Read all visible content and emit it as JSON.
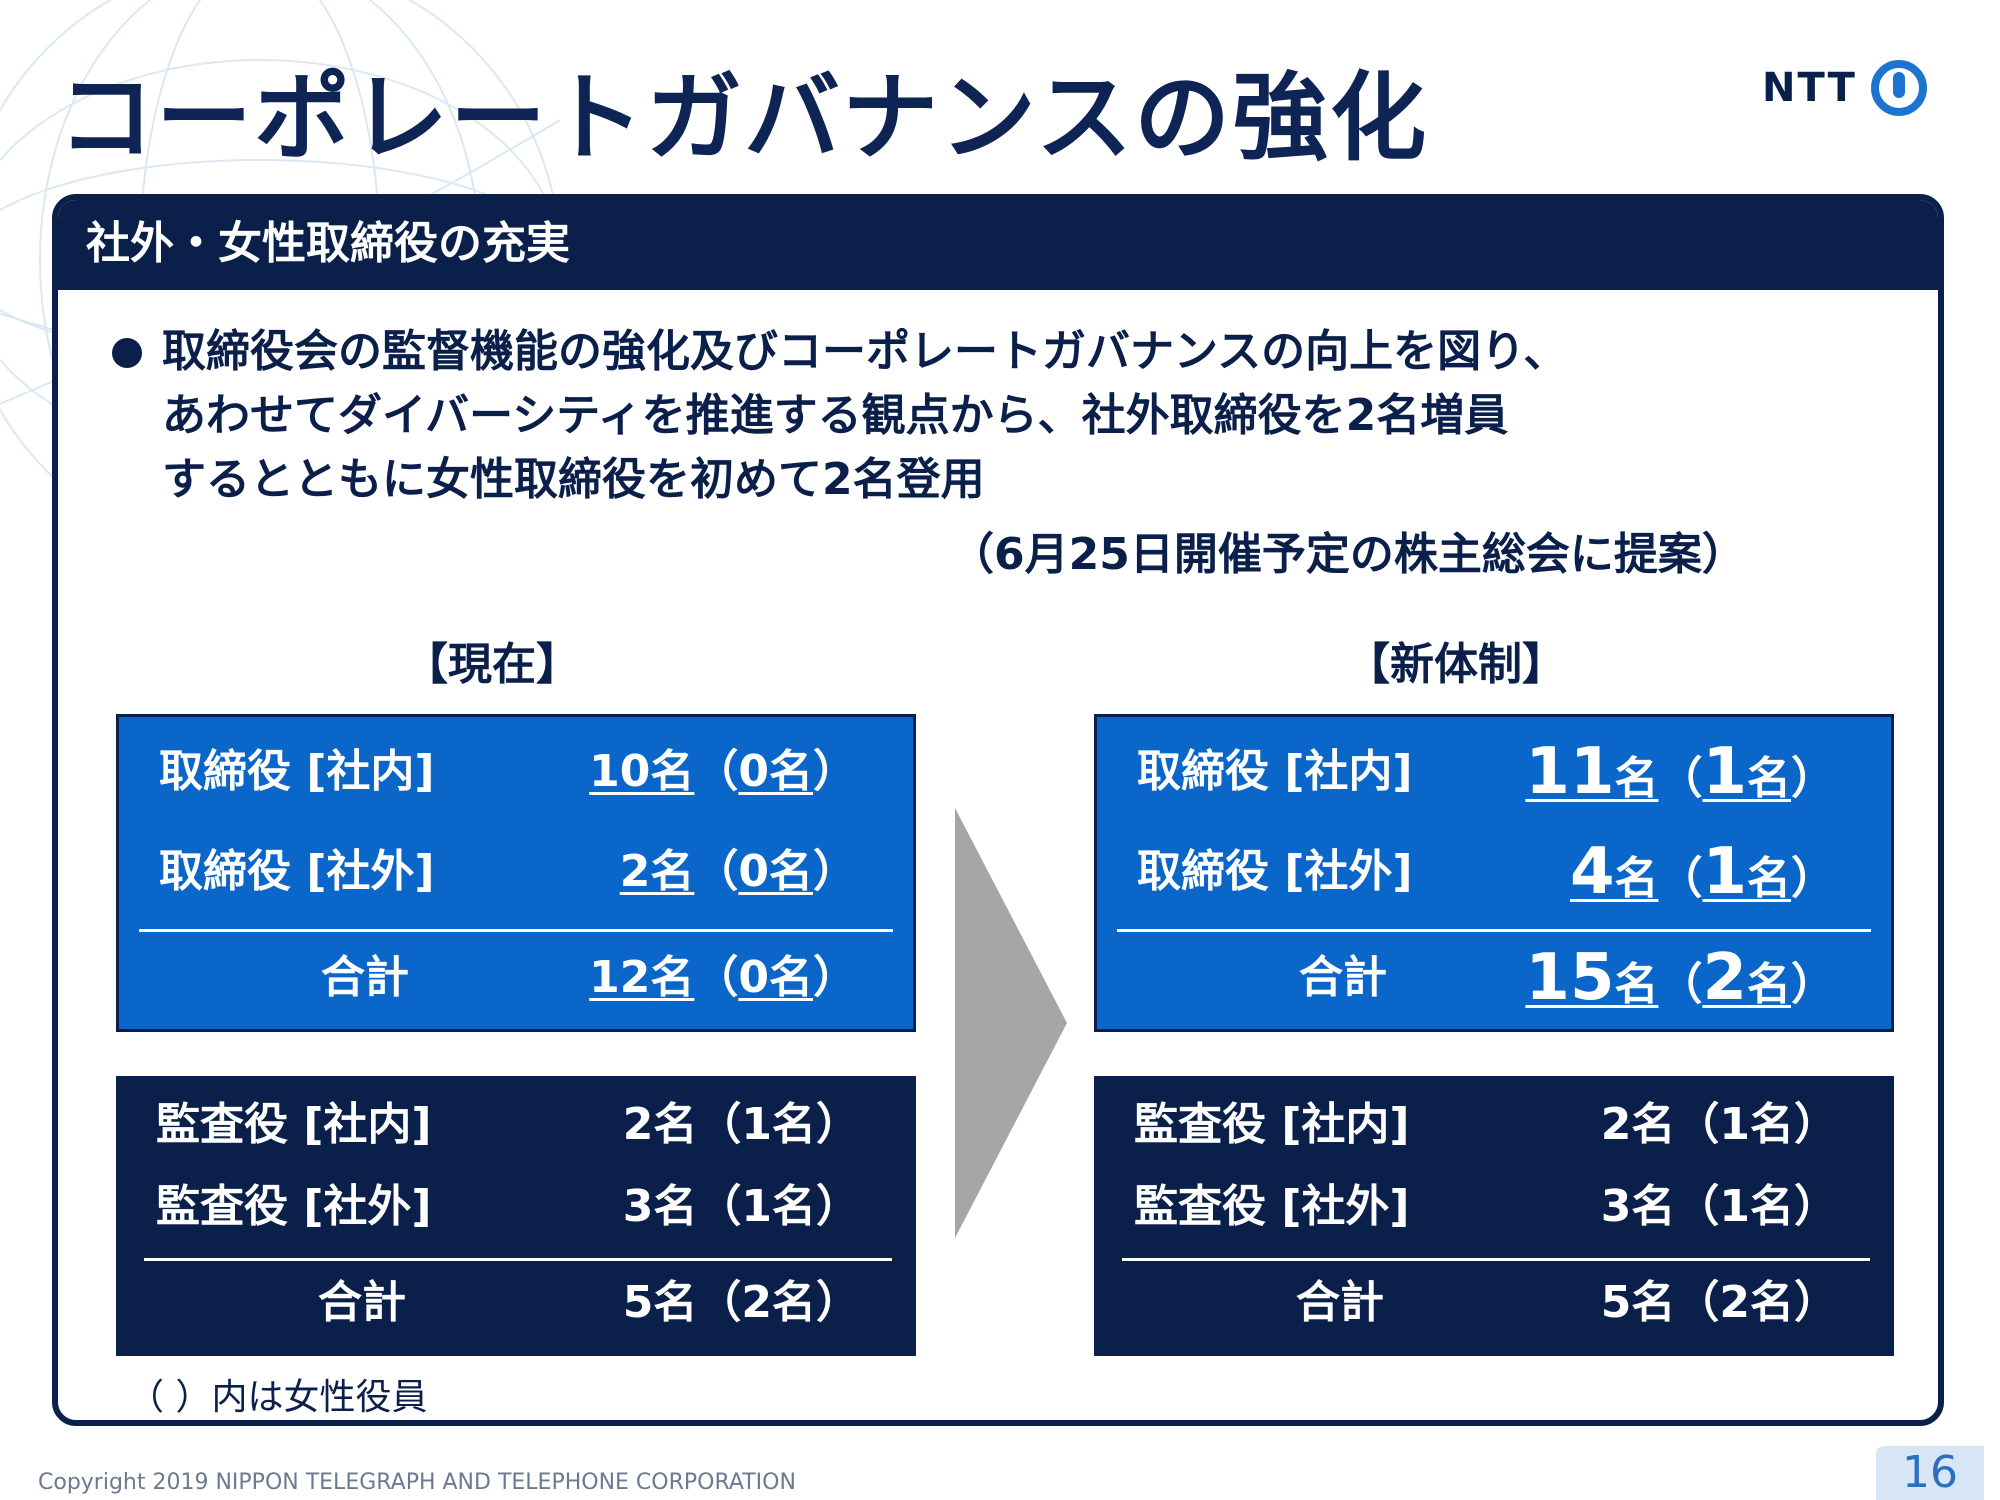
{
  "slide": {
    "title": "コーポレートガバナンスの強化",
    "logo_text": "NTT",
    "logo_icon": "ntt-ring-logo-icon",
    "page_number": "16",
    "copyright": "Copyright 2019 NIPPON TELEGRAPH AND TELEPHONE CORPORATION"
  },
  "panel": {
    "header": "社外・女性取締役の充実",
    "bullet_lines": [
      "取締役会の監督機能の強化及びコーポレートガバナンスの向上を図り、",
      "あわせてダイバーシティを推進する観点から、社外取締役を2名増員",
      "するとともに女性取締役を初めて2名登用"
    ],
    "bullet_note": "（6月25日開催予定の株主総会に提案）",
    "footnote": "（ ）内は女性役員"
  },
  "current": {
    "label": "【現在】",
    "directors": {
      "internal": {
        "label": "取締役 [社内]",
        "count": "10",
        "female": "0"
      },
      "external": {
        "label": "取締役 [社外]",
        "count": "2",
        "female": "0"
      },
      "total": {
        "label": "合計",
        "count": "12",
        "female": "0"
      }
    },
    "auditors": {
      "internal": {
        "label": "監査役 [社内]",
        "count": "2",
        "female": "1"
      },
      "external": {
        "label": "監査役 [社外]",
        "count": "3",
        "female": "1"
      },
      "total": {
        "label": "合計",
        "count": "5",
        "female": "2"
      }
    }
  },
  "new_system": {
    "label": "【新体制】",
    "directors": {
      "internal": {
        "label": "取締役 [社内]",
        "count": "11",
        "female": "1"
      },
      "external": {
        "label": "取締役 [社外]",
        "count": "4",
        "female": "1"
      },
      "total": {
        "label": "合計",
        "count": "15",
        "female": "2"
      }
    },
    "auditors": {
      "internal": {
        "label": "監査役 [社内]",
        "count": "2",
        "female": "1"
      },
      "external": {
        "label": "監査役 [社外]",
        "count": "3",
        "female": "1"
      },
      "total": {
        "label": "合計",
        "count": "5",
        "female": "2"
      }
    }
  },
  "units": {
    "person": "名",
    "open": "（",
    "close": "）"
  },
  "colors": {
    "navy": "#0b1f4b",
    "blue": "#0a66c8",
    "arrow": "#a6a6a6"
  }
}
